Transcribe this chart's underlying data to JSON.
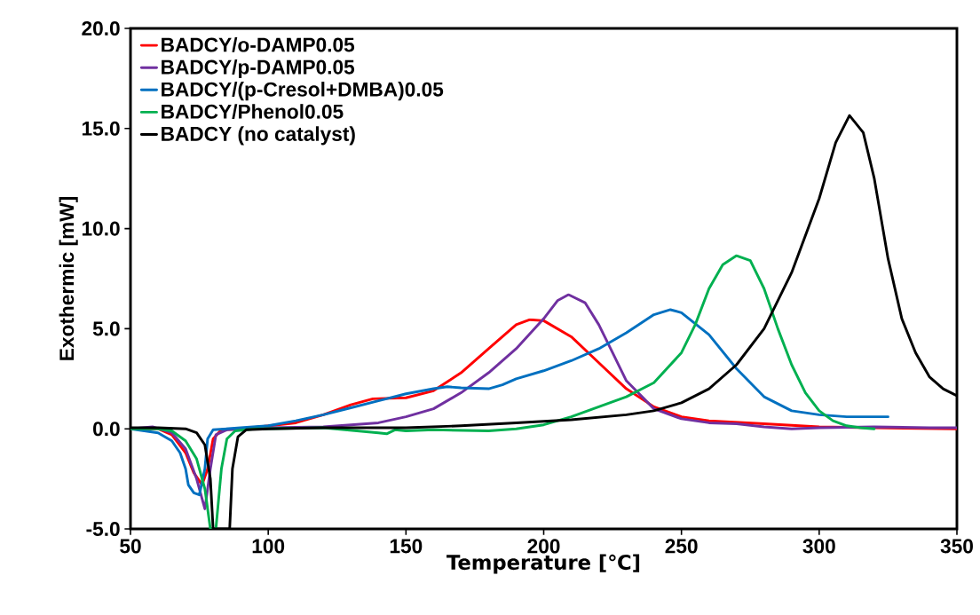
{
  "chart_data": {
    "type": "line",
    "xlabel": "Temperature [℃]",
    "ylabel": "Exothermic [mW]",
    "xlim": [
      50,
      350
    ],
    "ylim": [
      -5,
      20
    ],
    "xticks": [
      50,
      100,
      150,
      200,
      250,
      300,
      350
    ],
    "yticks": [
      {
        "value": -5,
        "label": "-5.0"
      },
      {
        "value": 0,
        "label": "0.0"
      },
      {
        "value": 5,
        "label": "5.0"
      },
      {
        "value": 10,
        "label": "10.0"
      },
      {
        "value": 15,
        "label": "15.0"
      },
      {
        "value": 20,
        "label": "20.0"
      }
    ],
    "grid": false,
    "legend": "top left",
    "marker": "none",
    "line_style": "solid",
    "series": [
      {
        "name": "BADCY/o-DAMP0.05",
        "color": "#ff0000",
        "x": [
          50,
          60,
          65,
          70,
          73,
          76,
          78,
          80,
          83,
          90,
          110,
          120,
          130,
          138,
          150,
          160,
          170,
          180,
          190,
          195,
          200,
          210,
          220,
          230,
          240,
          250,
          260,
          280,
          300,
          320,
          350
        ],
        "values": [
          0,
          0,
          -0.3,
          -1.2,
          -2.2,
          -2.8,
          -2.0,
          -0.5,
          -0.05,
          0,
          0.3,
          0.7,
          1.2,
          1.5,
          1.55,
          1.9,
          2.8,
          4.0,
          5.2,
          5.45,
          5.4,
          4.6,
          3.3,
          2.0,
          1.1,
          0.6,
          0.4,
          0.25,
          0.1,
          0.05,
          0
        ]
      },
      {
        "name": "BADCY/p-DAMP0.05",
        "color": "#7030a0",
        "x": [
          50,
          58,
          65,
          70,
          74,
          77,
          79,
          81,
          85,
          100,
          120,
          140,
          150,
          160,
          170,
          180,
          190,
          200,
          205,
          209,
          215,
          220,
          225,
          230,
          240,
          250,
          260,
          270,
          280,
          290,
          300,
          320,
          340,
          350
        ],
        "values": [
          0,
          0.1,
          -0.2,
          -1.0,
          -2.5,
          -4.0,
          -2.0,
          -0.3,
          -0.05,
          0.05,
          0.1,
          0.3,
          0.6,
          1.0,
          1.8,
          2.8,
          4.0,
          5.5,
          6.4,
          6.7,
          6.3,
          5.2,
          3.8,
          2.4,
          1.0,
          0.5,
          0.3,
          0.25,
          0.1,
          0,
          0.05,
          0.1,
          0.05,
          0.05
        ]
      },
      {
        "name": "BADCY/(p-Cresol+DMBA)0.05",
        "color": "#0070c0",
        "x": [
          50,
          60,
          65,
          68,
          70,
          71,
          73,
          75,
          77,
          78,
          80,
          90,
          100,
          110,
          120,
          130,
          140,
          150,
          160,
          165,
          170,
          180,
          185,
          190,
          200,
          210,
          220,
          230,
          240,
          246,
          250,
          260,
          270,
          280,
          290,
          300,
          310,
          325
        ],
        "values": [
          0,
          -0.2,
          -0.6,
          -1.2,
          -2.0,
          -2.8,
          -3.2,
          -3.3,
          -2.0,
          -0.5,
          -0.05,
          0.05,
          0.15,
          0.4,
          0.7,
          1.05,
          1.4,
          1.75,
          2.0,
          2.1,
          2.05,
          2.0,
          2.2,
          2.5,
          2.9,
          3.4,
          4.0,
          4.8,
          5.7,
          5.95,
          5.8,
          4.7,
          3.0,
          1.6,
          0.9,
          0.7,
          0.6,
          0.6
        ]
      },
      {
        "name": "BADCY/Phenol0.05",
        "color": "#00b050",
        "x": [
          50,
          60,
          65,
          70,
          74,
          77,
          79,
          81,
          83,
          85,
          88,
          95,
          120,
          140,
          143,
          146,
          150,
          160,
          180,
          190,
          200,
          210,
          220,
          230,
          240,
          250,
          255,
          260,
          265,
          270,
          275,
          280,
          285,
          290,
          295,
          300,
          305,
          310,
          315,
          320
        ],
        "values": [
          0,
          0,
          -0.1,
          -0.6,
          -1.5,
          -3.0,
          -5,
          -5,
          -2,
          -0.5,
          -0.1,
          0,
          0.05,
          -0.2,
          -0.25,
          -0.05,
          -0.1,
          -0.05,
          -0.1,
          0,
          0.2,
          0.6,
          1.1,
          1.6,
          2.3,
          3.8,
          5.2,
          7.0,
          8.2,
          8.65,
          8.4,
          7.0,
          5.0,
          3.2,
          1.8,
          0.9,
          0.4,
          0.15,
          0.05,
          0
        ]
      },
      {
        "name": "BADCY (no catalyst)",
        "color": "#000000",
        "x": [
          50,
          60,
          70,
          74,
          77,
          79,
          80,
          86,
          87,
          89,
          92,
          100,
          120,
          150,
          170,
          190,
          210,
          230,
          240,
          250,
          260,
          270,
          280,
          290,
          300,
          306,
          311,
          316,
          320,
          325,
          330,
          335,
          340,
          345,
          350
        ],
        "values": [
          0.05,
          0.05,
          0,
          -0.2,
          -0.8,
          -2.5,
          -5,
          -5,
          -2,
          -0.4,
          -0.05,
          0,
          0.05,
          0.05,
          0.15,
          0.3,
          0.45,
          0.7,
          0.9,
          1.3,
          2.0,
          3.2,
          5.0,
          7.8,
          11.5,
          14.3,
          15.65,
          14.8,
          12.5,
          8.5,
          5.5,
          3.8,
          2.6,
          2.0,
          1.65
        ]
      }
    ]
  }
}
